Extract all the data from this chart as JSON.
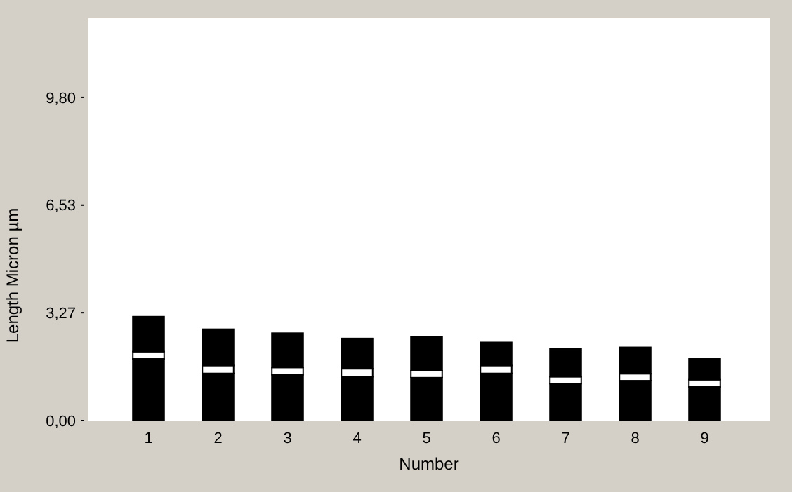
{
  "chart_data": {
    "type": "bar",
    "stacked": true,
    "xlabel": "Number",
    "ylabel": "Length Micron µm",
    "categories": [
      "1",
      "2",
      "3",
      "4",
      "5",
      "6",
      "7",
      "8",
      "9"
    ],
    "series": [
      {
        "color": "#000000",
        "values": [
          1.87,
          1.43,
          1.39,
          1.33,
          1.3,
          1.43,
          1.12,
          1.21,
          1.02
        ]
      },
      {
        "color": "#ffffff",
        "values": [
          0.22,
          0.24,
          0.22,
          0.24,
          0.21,
          0.24,
          0.21,
          0.21,
          0.22
        ]
      },
      {
        "color": "#000000",
        "values": [
          1.06,
          1.1,
          1.04,
          0.92,
          1.04,
          0.7,
          0.84,
          0.8,
          0.63
        ]
      }
    ],
    "ylim": [
      0,
      12.2
    ],
    "yticks": [
      {
        "value": 0,
        "label": "0,00"
      },
      {
        "value": 3.27,
        "label": "3,27"
      },
      {
        "value": 6.53,
        "label": "6,53"
      },
      {
        "value": 9.8,
        "label": "9,80"
      }
    ],
    "grid": false
  }
}
